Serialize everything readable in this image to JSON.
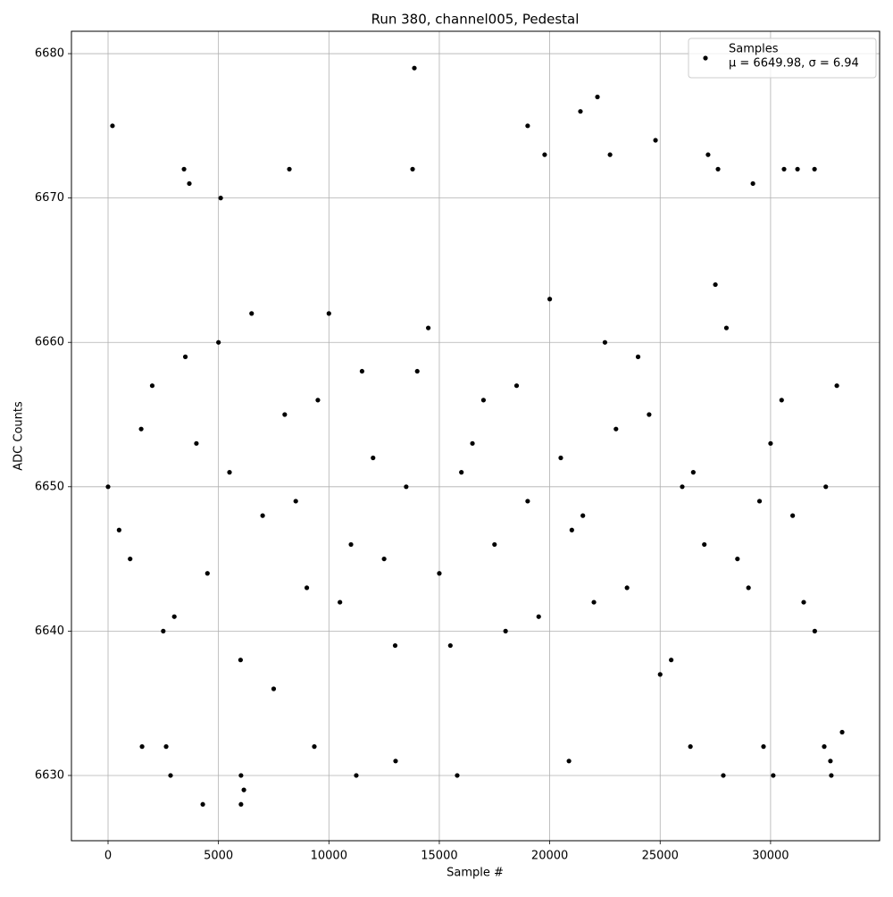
{
  "chart_data": {
    "type": "scatter",
    "title": "Run 380, channel005, Pedestal",
    "x_label": "Sample #",
    "y_label": "ADC Counts",
    "legend_note": "μ = 6649.98, σ = 6.94",
    "legend_position": "upper right",
    "grid": true,
    "xlim": [
      -1658,
      34937
    ],
    "ylim": [
      6625.48,
      6681.55
    ],
    "xticks": [
      0,
      5000,
      10000,
      15000,
      20000,
      25000,
      30000
    ],
    "yticks": [
      6630,
      6640,
      6650,
      6660,
      6670,
      6680
    ],
    "series": [
      {
        "name": "Samples",
        "color": "#000000",
        "x": [
          200,
          13870,
          22160,
          21390,
          19000,
          24790,
          4290,
          6020,
          6150,
          2830,
          6020,
          11240,
          15810,
          27860,
          30120,
          32750,
          32710,
          13020,
          20870,
          3440,
          3680,
          8210,
          5100,
          13790,
          19770,
          22730,
          27170,
          27620,
          29200,
          30610,
          31990,
          31220,
          1540,
          2630,
          9340,
          26370,
          29680,
          32430,
          33240,
          0,
          1000,
          2000,
          3000,
          4000,
          5000,
          6000,
          7000,
          8000,
          9000,
          10000,
          11000,
          12000,
          13000,
          14000,
          15000,
          16000,
          17000,
          18000,
          19000,
          20000,
          21000,
          22000,
          23000,
          24000,
          25000,
          26000,
          27000,
          28000,
          29000,
          30000,
          31000,
          32000,
          33000,
          500,
          1500,
          2500,
          3500,
          4500,
          5500,
          6500,
          7500,
          8500,
          9500,
          10500,
          11500,
          12500,
          13500,
          14500,
          15500,
          16500,
          17500,
          18500,
          19500,
          20500,
          21500,
          22500,
          23500,
          24500,
          25500,
          26500,
          27500,
          28500,
          29500,
          30500,
          31500,
          32500
        ],
        "values": [
          6675,
          6679,
          6677,
          6676,
          6675,
          6674,
          6628,
          6628,
          6629,
          6630,
          6630,
          6630,
          6630,
          6630,
          6630,
          6630,
          6631,
          6631,
          6631,
          6672,
          6671,
          6672,
          6670,
          6672,
          6673,
          6673,
          6673,
          6672,
          6671,
          6672,
          6672,
          6672,
          6632,
          6632,
          6632,
          6632,
          6632,
          6632,
          6633,
          6650,
          6645,
          6657,
          6641,
          6653,
          6660,
          6638,
          6648,
          6655,
          6643,
          6662,
          6646,
          6652,
          6639,
          6658,
          6644,
          6651,
          6656,
          6640,
          6649,
          6663,
          6647,
          6642,
          6654,
          6659,
          6637,
          6650,
          6646,
          6661,
          6643,
          6653,
          6648,
          6640,
          6657,
          6647,
          6654,
          6640,
          6659,
          6644,
          6651,
          6662,
          6636,
          6649,
          6656,
          6642,
          6658,
          6645,
          6650,
          6661,
          6639,
          6653,
          6646,
          6657,
          6641,
          6652,
          6648,
          6660,
          6643,
          6655,
          6638,
          6651,
          6664,
          6645,
          6649,
          6656,
          6642,
          6650
        ]
      }
    ]
  }
}
